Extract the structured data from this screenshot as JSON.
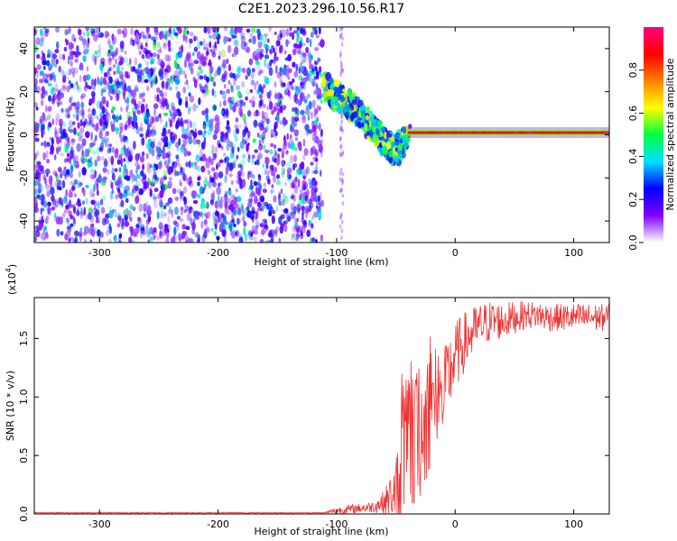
{
  "chart_data": [
    {
      "type": "heatmap",
      "title": "C2E1.2023.296.10.56.R17",
      "xlabel": "Height of straight line (km)",
      "ylabel": "Frequency (Hz)",
      "xlim": [
        -355,
        130
      ],
      "ylim": [
        -50,
        50
      ],
      "xticks": [
        -300,
        -200,
        -100,
        0,
        100
      ],
      "yticks": [
        -40,
        -20,
        0,
        20,
        40
      ],
      "colorbar": {
        "label": "Normalized spectral amplitude",
        "range": [
          0,
          1
        ],
        "ticks": [
          "0.0",
          "0.2",
          "0.4",
          "0.6",
          "0.8"
        ],
        "colormap": [
          "#ffffff",
          "#8000ff",
          "#0000ff",
          "#00e0ff",
          "#00ff40",
          "#ffff00",
          "#ff8000",
          "#ff0000",
          "#ff0080"
        ]
      },
      "regions": [
        {
          "name": "noise",
          "x_range": [
            -355,
            -112
          ],
          "f_range": [
            -50,
            50
          ],
          "amplitude": "low (0.1-0.4)"
        },
        {
          "name": "signal-descent",
          "points": [
            [
              -110,
              22
            ],
            [
              -100,
              18
            ],
            [
              -90,
              14
            ],
            [
              -80,
              9
            ],
            [
              -70,
              4
            ],
            [
              -60,
              -3
            ],
            [
              -50,
              -8
            ],
            [
              -40,
              0
            ]
          ],
          "amplitude": "0.3-0.6"
        },
        {
          "name": "carrier",
          "x_range": [
            -40,
            130
          ],
          "frequency": 1,
          "amplitude": "0.8-1.0"
        }
      ]
    },
    {
      "type": "line",
      "xlabel": "Height of straight line (km)",
      "ylabel": "SNR (10 * v/v)",
      "yscale_note": "(x10",
      "yscale_exp": "4",
      "yscale_close": ")",
      "xlim": [
        -355,
        130
      ],
      "ylim": [
        0.0,
        1.85
      ],
      "xticks": [
        -300,
        -200,
        -100,
        0,
        100
      ],
      "yticks": [
        "0.0",
        "0.5",
        "1.0",
        "1.5"
      ],
      "color": "#ee3333",
      "envelope": {
        "x": [
          -355,
          -110,
          -100,
          -90,
          -80,
          -70,
          -60,
          -50,
          -45,
          -40,
          -35,
          -30,
          -25,
          -20,
          -15,
          -10,
          -5,
          0,
          10,
          20,
          30,
          40,
          50,
          60,
          70,
          80,
          90,
          100,
          110,
          120,
          130
        ],
        "y_mean": [
          0.01,
          0.01,
          0.03,
          0.04,
          0.05,
          0.06,
          0.1,
          0.2,
          0.45,
          0.6,
          0.55,
          0.7,
          0.8,
          0.9,
          0.95,
          1.0,
          1.2,
          1.35,
          1.5,
          1.6,
          1.65,
          1.65,
          1.68,
          1.7,
          1.7,
          1.68,
          1.68,
          1.68,
          1.68,
          1.68,
          1.68
        ],
        "spread": [
          0.005,
          0.005,
          0.03,
          0.04,
          0.04,
          0.05,
          0.1,
          0.25,
          0.6,
          0.6,
          0.6,
          0.6,
          0.55,
          0.5,
          0.45,
          0.4,
          0.35,
          0.3,
          0.25,
          0.2,
          0.18,
          0.16,
          0.14,
          0.12,
          0.12,
          0.12,
          0.12,
          0.12,
          0.12,
          0.12,
          0.12
        ]
      }
    }
  ]
}
